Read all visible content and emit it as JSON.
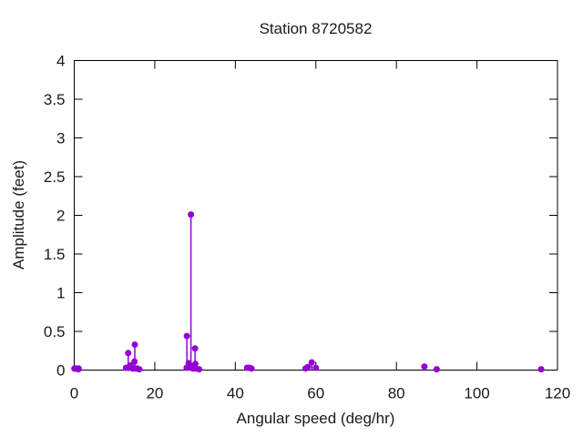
{
  "chart_data": {
    "type": "scatter",
    "style": "impulses-with-points",
    "title": "Station 8720582",
    "xlabel": "Angular speed (deg/hr)",
    "ylabel": "Amplitude (feet)",
    "xlim": [
      0,
      120
    ],
    "ylim": [
      0,
      4
    ],
    "xticks": [
      0,
      20,
      40,
      60,
      80,
      100,
      120
    ],
    "xtick_labels": [
      "0",
      "20",
      "40",
      "60",
      "80",
      "100",
      "120"
    ],
    "yticks": [
      0,
      0.5,
      1,
      1.5,
      2,
      2.5,
      3,
      3.5,
      4
    ],
    "ytick_labels": [
      "0",
      "0.5",
      "1",
      "1.5",
      "2",
      "2.5",
      "3",
      "3.5",
      "4"
    ],
    "grid": false,
    "legend": "none",
    "border": "full-box-mirrored-ticks",
    "axis_color": "#000000",
    "text_color": "#1a1a1a",
    "marker_color": "#9400d3",
    "marker_shape": "filled-circle",
    "series": [
      {
        "name": "tidal-harmonic-constituents",
        "points": [
          [
            0.04,
            0.02
          ],
          [
            0.08,
            0.02
          ],
          [
            0.54,
            0.02
          ],
          [
            1.02,
            0.01
          ],
          [
            1.1,
            0.02
          ],
          [
            12.85,
            0.03
          ],
          [
            13.4,
            0.22
          ],
          [
            13.47,
            0.03
          ],
          [
            13.94,
            0.06
          ],
          [
            14.5,
            0.02
          ],
          [
            14.96,
            0.11
          ],
          [
            15.0,
            0.02
          ],
          [
            15.04,
            0.33
          ],
          [
            15.59,
            0.02
          ],
          [
            16.14,
            0.01
          ],
          [
            27.9,
            0.03
          ],
          [
            27.97,
            0.44
          ],
          [
            28.44,
            0.09
          ],
          [
            28.51,
            0.04
          ],
          [
            28.98,
            2.01
          ],
          [
            29.46,
            0.02
          ],
          [
            29.53,
            0.05
          ],
          [
            29.96,
            0.03
          ],
          [
            30.0,
            0.28
          ],
          [
            30.04,
            0.02
          ],
          [
            30.08,
            0.08
          ],
          [
            31.02,
            0.01
          ],
          [
            42.93,
            0.03
          ],
          [
            43.48,
            0.03
          ],
          [
            44.03,
            0.02
          ],
          [
            57.42,
            0.02
          ],
          [
            57.97,
            0.04
          ],
          [
            58.98,
            0.1
          ],
          [
            60.0,
            0.03
          ],
          [
            86.95,
            0.045
          ],
          [
            90.0,
            0.01
          ],
          [
            115.94,
            0.01
          ]
        ]
      }
    ]
  }
}
